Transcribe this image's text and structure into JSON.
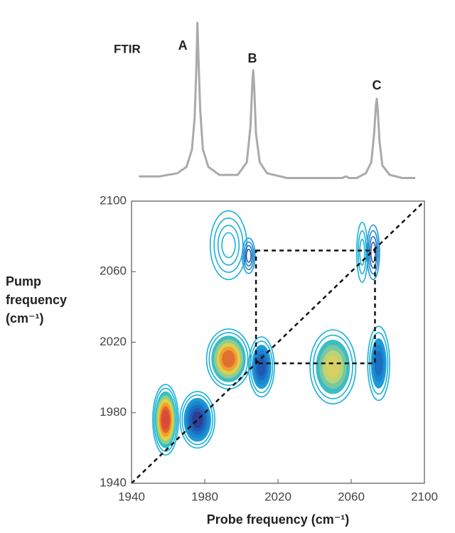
{
  "chart_data": [
    {
      "type": "line",
      "title": "FTIR",
      "xlim": [
        1940,
        2100
      ],
      "ylim": [
        0,
        1
      ],
      "color": "#aaaaaa",
      "x": [
        1944,
        1955,
        1965,
        1970,
        1973,
        1974.5,
        1975.5,
        1976,
        1976.5,
        1977.5,
        1979,
        1982,
        1988,
        1998,
        2003,
        2005,
        2006,
        2006.5,
        2007,
        2008,
        2010,
        2014,
        2025,
        2045,
        2055,
        2057,
        2059,
        2063,
        2068,
        2071,
        2072.5,
        2073.5,
        2074,
        2074.5,
        2075.5,
        2077,
        2081,
        2088,
        2095
      ],
      "values": [
        0.03,
        0.03,
        0.05,
        0.09,
        0.2,
        0.4,
        0.75,
        1.0,
        0.8,
        0.45,
        0.2,
        0.09,
        0.04,
        0.04,
        0.12,
        0.35,
        0.62,
        0.7,
        0.6,
        0.3,
        0.12,
        0.05,
        0.02,
        0.02,
        0.02,
        0.03,
        0.02,
        0.02,
        0.05,
        0.12,
        0.3,
        0.48,
        0.52,
        0.45,
        0.25,
        0.1,
        0.04,
        0.02,
        0.02
      ],
      "annotations": [
        {
          "text": "A",
          "x": 1968,
          "y": 0.85
        },
        {
          "text": "B",
          "x": 2006,
          "y": 0.77
        },
        {
          "text": "C",
          "x": 2074,
          "y": 0.6
        }
      ]
    },
    {
      "type": "contour",
      "xlabel": "Probe frequency (cm⁻¹)",
      "ylabel": "Pump frequency (cm⁻¹)",
      "xlim": [
        1940,
        2100
      ],
      "ylim": [
        1940,
        2100
      ],
      "xticks": [
        1940,
        1980,
        2020,
        2060,
        2100
      ],
      "yticks": [
        1940,
        1980,
        2020,
        2060,
        2100
      ],
      "diagonal": true,
      "cross_box": {
        "x": [
          2008,
          2073
        ],
        "y": [
          2008,
          2072
        ]
      },
      "spots": [
        {
          "x": 1958.6,
          "y": 1976,
          "width": 14,
          "height": 40,
          "filled": true,
          "colors": [
            "#1ab0d8",
            "#1ab0d8",
            "#2fc0c8",
            "#8fd08a",
            "#e6d040",
            "#f0a030",
            "#e8602a",
            "#d84a3a"
          ]
        },
        {
          "x": 1976,
          "y": 1976,
          "width": 19,
          "height": 32,
          "filled": true,
          "colors": [
            "#1ab0d8",
            "#1ab0d8",
            "#1e9ad6",
            "#1a86cf",
            "#1a6fc2",
            "#2458b0",
            "#2a3f98"
          ]
        },
        {
          "x": 1993,
          "y": 2010.5,
          "width": 24,
          "height": 34,
          "filled": true,
          "colors": [
            "#1ab0d8",
            "#1ab0d8",
            "#3cbcc4",
            "#90cc90",
            "#dcd050",
            "#f0a030",
            "#e07030"
          ]
        },
        {
          "x": 2011,
          "y": 2006,
          "width": 14,
          "height": 34,
          "filled": true,
          "colors": [
            "#1ab0d8",
            "#1ab0d8",
            "#1e9ad6",
            "#1a86cf",
            "#1a6fc2",
            "#2458b0"
          ]
        },
        {
          "x": 2050,
          "y": 2006,
          "width": 25,
          "height": 42,
          "filled": true,
          "colors": [
            "#1ab0d8",
            "#1ab0d8",
            "#3cbcc4",
            "#78c8a0",
            "#b8d47a",
            "#d8d060"
          ]
        },
        {
          "x": 2075,
          "y": 2008,
          "width": 12,
          "height": 42,
          "filled": true,
          "colors": [
            "#1ab0d8",
            "#1ab0d8",
            "#1e9ad6",
            "#1a86cf",
            "#1a6fc2"
          ]
        },
        {
          "x": 1993,
          "y": 2075,
          "width": 20,
          "height": 39,
          "filled": false,
          "colors": [
            "#1ab0d8",
            "#1ab0d8",
            "#1ab0d8",
            "#1ab0d8"
          ]
        },
        {
          "x": 2004,
          "y": 2069,
          "width": 7,
          "height": 20,
          "filled": false,
          "colors": [
            "#1a9ad6",
            "#1a86cf",
            "#1a6fc2",
            "#2458b0"
          ]
        },
        {
          "x": 2066,
          "y": 2071,
          "width": 6,
          "height": 34,
          "filled": false,
          "colors": [
            "#1ab0d8",
            "#1ab0d8",
            "#1ab0d8"
          ]
        },
        {
          "x": 2072,
          "y": 2071,
          "width": 7,
          "height": 31,
          "filled": false,
          "colors": [
            "#1a9ad6",
            "#1a86cf",
            "#1a6fc2",
            "#2458b0"
          ]
        }
      ]
    }
  ]
}
